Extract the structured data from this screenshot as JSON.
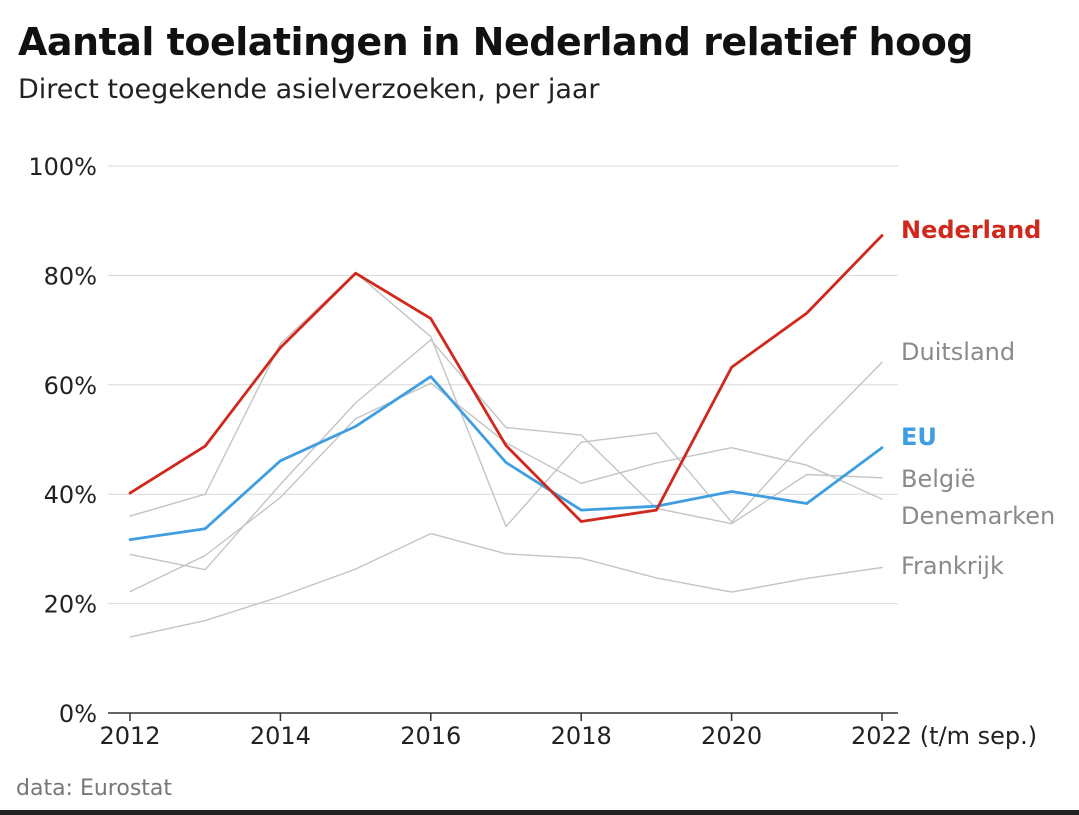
{
  "header": {
    "title": "Aantal toelatingen in Nederland relatief hoog",
    "subtitle": "Direct toegekende asielverzoeken, per jaar"
  },
  "footer": {
    "source": "data: Eurostat"
  },
  "chart_data": {
    "type": "line",
    "title": "Aantal toelatingen in Nederland relatief hoog",
    "subtitle": "Direct toegekende asielverzoeken, per jaar",
    "xlabel": "",
    "ylabel": "",
    "x": [
      2012,
      2013,
      2014,
      2015,
      2016,
      2017,
      2018,
      2019,
      2020,
      2021,
      2022
    ],
    "x_tick_labels": [
      "2012",
      "2014",
      "2016",
      "2018",
      "2020",
      "2022 (t/m sep.)"
    ],
    "x_tick_values": [
      2012,
      2014,
      2016,
      2018,
      2020,
      2022
    ],
    "ylim": [
      0,
      100
    ],
    "y_ticks": [
      0,
      20,
      40,
      60,
      80,
      100
    ],
    "y_tick_labels": [
      "0%",
      "20%",
      "40%",
      "60%",
      "80%",
      "100%"
    ],
    "grid": true,
    "legend": "direct labels at right end of lines",
    "colors": {
      "Nederland": "#d0281c",
      "EU": "#3f9ee0",
      "other": "#c4c4c4"
    },
    "series": [
      {
        "name": "Nederland",
        "values": [
          40.2,
          48.8,
          66.8,
          80.4,
          72.1,
          48.9,
          35.0,
          37.1,
          63.2,
          73.1,
          87.3
        ]
      },
      {
        "name": "Duitsland",
        "values": [
          36.0,
          40.0,
          67.5,
          80.5,
          68.8,
          34.1,
          49.5,
          51.2,
          34.9,
          50.1,
          64.1
        ]
      },
      {
        "name": "EU",
        "values": [
          31.7,
          33.7,
          46.1,
          52.4,
          61.5,
          45.8,
          37.1,
          37.8,
          40.5,
          38.3,
          48.5
        ]
      },
      {
        "name": "België",
        "values": [
          29.0,
          26.2,
          41.8,
          56.7,
          68.2,
          52.2,
          50.8,
          37.4,
          34.6,
          43.6,
          43.0
        ]
      },
      {
        "name": "Denemarken",
        "values": [
          22.2,
          28.8,
          39.4,
          53.8,
          60.3,
          49.4,
          42.0,
          45.7,
          48.5,
          45.3,
          39.1
        ]
      },
      {
        "name": "Frankrijk",
        "values": [
          13.9,
          16.9,
          21.3,
          26.3,
          32.8,
          29.1,
          28.3,
          24.7,
          22.1,
          24.6,
          26.6
        ]
      }
    ],
    "series_labels": [
      {
        "name": "Nederland"
      },
      {
        "name": "Duitsland"
      },
      {
        "name": "EU"
      },
      {
        "name": "België"
      },
      {
        "name": "Denemarken"
      },
      {
        "name": "Frankrijk"
      }
    ]
  }
}
